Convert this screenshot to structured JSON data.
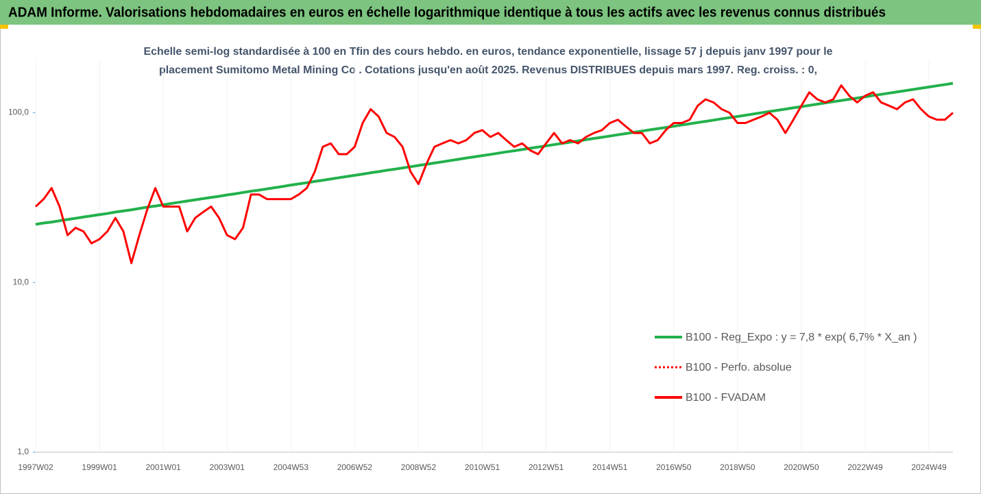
{
  "header": {
    "title": "ADAM Informe. Valorisations hebdomadaires en euros en échelle logarithmique identique à tous les actifs avec les revenus connus distribués"
  },
  "chart_data": {
    "type": "line",
    "title": [
      "Echelle semi-log standardisée à 100 en Tfin des cours hebdo. en euros, tendance exponentielle, lissage 57 j depuis janv 1997 pour le",
      "placement Sumitomo Metal Mining Co . Cotations jusqu'en août 2025. Revenus DISTRIBUES depuis mars 1997. Reg. croiss. : 0,"
    ],
    "log_scale": true,
    "ylim": [
      1,
      200
    ],
    "yticks": [
      {
        "value": 1,
        "label": "1,0"
      },
      {
        "value": 10,
        "label": "10,0"
      },
      {
        "value": 100,
        "label": "100,0"
      }
    ],
    "categories": [
      "1997W02",
      null,
      null,
      null,
      null,
      null,
      null,
      null,
      "1999W01",
      null,
      null,
      null,
      null,
      null,
      null,
      null,
      "2001W01",
      null,
      null,
      null,
      null,
      null,
      null,
      null,
      "2003W01",
      null,
      null,
      null,
      null,
      null,
      null,
      null,
      "2004W53",
      null,
      null,
      null,
      null,
      null,
      null,
      null,
      "2006W52",
      null,
      null,
      null,
      null,
      null,
      null,
      null,
      "2008W52",
      null,
      null,
      null,
      null,
      null,
      null,
      null,
      "2010W51",
      null,
      null,
      null,
      null,
      null,
      null,
      null,
      "2012W51",
      null,
      null,
      null,
      null,
      null,
      null,
      null,
      "2014W51",
      null,
      null,
      null,
      null,
      null,
      null,
      null,
      "2016W50",
      null,
      null,
      null,
      null,
      null,
      null,
      null,
      "2018W50",
      null,
      null,
      null,
      null,
      null,
      null,
      null,
      "2020W50",
      null,
      null,
      null,
      null,
      null,
      null,
      null,
      "2022W49",
      null,
      null,
      null,
      null,
      null,
      null,
      null,
      "2024W49",
      null,
      null,
      null
    ],
    "legend_position": "right",
    "series": [
      {
        "name": "B100 - Reg_Expo : y = 7,8 * exp( 6,7% *  X_an )",
        "color": "#22b14c",
        "style": "solid",
        "values": [
          22.0,
          22.4,
          22.7,
          23.1,
          23.5,
          23.9,
          24.3,
          24.7,
          25.1,
          25.5,
          26.0,
          26.4,
          26.8,
          27.3,
          27.8,
          28.2,
          28.7,
          29.2,
          29.7,
          30.2,
          30.7,
          31.2,
          31.7,
          32.2,
          32.8,
          33.3,
          33.9,
          34.5,
          35.0,
          35.6,
          36.2,
          36.8,
          37.5,
          38.1,
          38.7,
          39.4,
          40.0,
          40.7,
          41.4,
          42.1,
          42.8,
          43.5,
          44.3,
          45.0,
          45.8,
          46.5,
          47.3,
          48.1,
          48.9,
          49.7,
          50.6,
          51.4,
          52.3,
          53.2,
          54.1,
          55.0,
          55.9,
          56.8,
          57.8,
          58.8,
          59.7,
          60.7,
          61.8,
          62.8,
          63.8,
          64.9,
          66.0,
          67.1,
          68.2,
          69.4,
          70.6,
          71.7,
          72.9,
          74.2,
          75.4,
          76.7,
          78.0,
          79.3,
          80.6,
          81.9,
          83.3,
          84.7,
          86.1,
          87.6,
          89.0,
          90.5,
          92.1,
          93.6,
          95.1,
          96.7,
          98.4,
          100.0,
          101.7,
          103.4,
          105.1,
          106.9,
          108.7,
          110.5,
          112.4,
          114.3,
          116.2,
          118.1,
          120.1,
          122.1,
          124.2,
          126.3,
          128.4,
          130.5,
          132.7,
          134.9,
          137.2,
          139.5,
          141.8,
          144.2,
          146.6,
          149.1
        ]
      },
      {
        "name": "B100 - Perfo. absolue",
        "color": "#ff0000",
        "style": "dotted",
        "values": [
          28,
          31,
          36,
          28,
          19,
          21,
          20,
          17,
          18,
          20,
          24,
          20,
          13,
          19,
          27,
          36,
          28,
          28,
          28,
          20,
          24,
          26,
          28,
          24,
          19,
          18,
          21,
          33,
          33,
          31,
          31,
          31,
          31,
          33,
          36,
          45,
          63,
          66,
          57,
          57,
          63,
          87,
          105,
          95,
          76,
          72,
          63,
          45,
          38,
          50,
          63,
          66,
          69,
          66,
          69,
          76,
          79,
          72,
          76,
          69,
          63,
          66,
          60,
          57,
          66,
          76,
          66,
          69,
          66,
          72,
          76,
          79,
          87,
          91,
          83,
          76,
          76,
          66,
          69,
          79,
          87,
          87,
          91,
          110,
          120,
          115,
          105,
          100,
          87,
          87,
          91,
          95,
          100,
          91,
          76,
          91,
          110,
          132,
          120,
          115,
          120,
          145,
          126,
          115,
          126,
          132,
          115,
          110,
          105,
          115,
          120,
          105,
          95,
          91,
          91,
          100
        ]
      },
      {
        "name": "B100 - FVADAM",
        "color": "#ff0000",
        "style": "solid",
        "values": [
          28,
          31,
          36,
          28,
          19,
          21,
          20,
          17,
          18,
          20,
          24,
          20,
          13,
          19,
          27,
          36,
          28,
          28,
          28,
          20,
          24,
          26,
          28,
          24,
          19,
          18,
          21,
          33,
          33,
          31,
          31,
          31,
          31,
          33,
          36,
          45,
          63,
          66,
          57,
          57,
          63,
          87,
          105,
          95,
          76,
          72,
          63,
          45,
          38,
          50,
          63,
          66,
          69,
          66,
          69,
          76,
          79,
          72,
          76,
          69,
          63,
          66,
          60,
          57,
          66,
          76,
          66,
          69,
          66,
          72,
          76,
          79,
          87,
          91,
          83,
          76,
          76,
          66,
          69,
          79,
          87,
          87,
          91,
          110,
          120,
          115,
          105,
          100,
          87,
          87,
          91,
          95,
          100,
          91,
          76,
          91,
          110,
          132,
          120,
          115,
          120,
          145,
          126,
          115,
          126,
          132,
          115,
          110,
          105,
          115,
          120,
          105,
          95,
          91,
          91,
          100
        ]
      }
    ]
  }
}
